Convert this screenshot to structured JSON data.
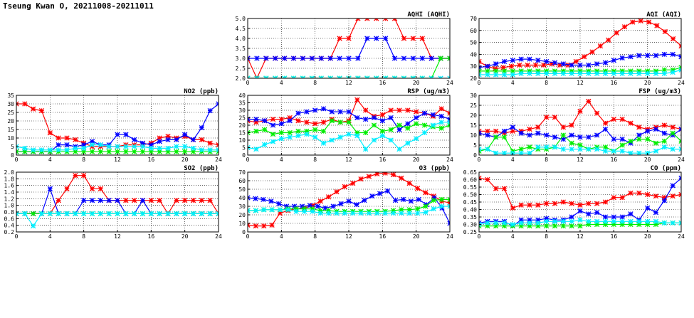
{
  "page": {
    "title": "Tseung Kwan O, 20211008-20211011"
  },
  "colors": {
    "red": "#ff0000",
    "blue": "#0000ff",
    "green": "#00ee00",
    "cyan": "#00eeff"
  },
  "chart_data": [
    {
      "id": "aqhi",
      "type": "line",
      "title": "AQHI (AQHI)",
      "xlim": [
        0,
        24
      ],
      "xticks": [
        0,
        4,
        8,
        12,
        16,
        20,
        24
      ],
      "ylim": [
        2.0,
        5.0
      ],
      "yticks": [
        "2.0",
        "2.5",
        "3.0",
        "3.5",
        "4.0",
        "4.5",
        "5.0"
      ],
      "grid": true,
      "series": [
        {
          "color": "red",
          "values": [
            3,
            2,
            3,
            3,
            3,
            3,
            3,
            3,
            3,
            3,
            4,
            4,
            5,
            5,
            5,
            5,
            5,
            4,
            4,
            4,
            3,
            3,
            3
          ]
        },
        {
          "color": "blue",
          "values": [
            3,
            3,
            3,
            3,
            3,
            3,
            3,
            3,
            3,
            3,
            3,
            3,
            3,
            4,
            4,
            4,
            3,
            3,
            3,
            3,
            3,
            3,
            3
          ]
        },
        {
          "color": "green",
          "values": [
            2,
            2,
            2,
            2,
            2,
            2,
            2,
            2,
            2,
            2,
            2,
            2,
            2,
            2,
            2,
            2,
            2,
            2,
            2,
            2,
            2,
            3,
            3
          ]
        },
        {
          "color": "cyan",
          "values": [
            2,
            2,
            2,
            2,
            2,
            2,
            2,
            2,
            2,
            2,
            2,
            2,
            2,
            2,
            2,
            2,
            2,
            2,
            2,
            2,
            2,
            2,
            2
          ]
        }
      ]
    },
    {
      "id": "aqi",
      "type": "line",
      "title": "AQI (AQI)",
      "xlim": [
        0,
        24
      ],
      "xticks": [
        0,
        4,
        8,
        12,
        16,
        20,
        24
      ],
      "ylim": [
        20,
        70
      ],
      "yticks": [
        "20",
        "30",
        "40",
        "50",
        "60",
        "70"
      ],
      "grid": true,
      "series": [
        {
          "color": "red",
          "values": [
            34,
            30,
            28,
            29,
            30,
            31,
            31,
            31,
            31,
            32,
            31,
            31,
            34,
            38,
            42,
            47,
            52,
            58,
            63,
            67,
            68,
            67,
            64,
            59,
            53,
            47
          ]
        },
        {
          "color": "blue",
          "values": [
            29,
            30,
            32,
            34,
            35,
            36,
            36,
            35,
            34,
            33,
            32,
            31,
            31,
            31,
            32,
            33,
            35,
            37,
            38,
            39,
            39,
            39,
            40,
            40,
            38
          ]
        },
        {
          "color": "green",
          "values": [
            26,
            26,
            26,
            26,
            26,
            26,
            26,
            26,
            26,
            26,
            26,
            26,
            26,
            26,
            26,
            26,
            26,
            26,
            26,
            26,
            26,
            26,
            27,
            27,
            29
          ]
        },
        {
          "color": "cyan",
          "values": [
            23,
            23,
            23,
            23,
            23,
            24,
            24,
            24,
            24,
            24,
            24,
            24,
            24,
            24,
            24,
            24,
            24,
            24,
            24,
            24,
            24,
            24,
            24,
            25,
            27
          ]
        }
      ]
    },
    {
      "id": "no2",
      "type": "line",
      "title": "NO2 (ppb)",
      "xlim": [
        0,
        24
      ],
      "xticks": [
        0,
        4,
        8,
        12,
        16,
        20,
        24
      ],
      "ylim": [
        0,
        35
      ],
      "yticks": [
        "0",
        "5",
        "10",
        "15",
        "20",
        "25",
        "30",
        "35"
      ],
      "grid": true,
      "series": [
        {
          "color": "red",
          "values": [
            30,
            30,
            27,
            26,
            13,
            10,
            10,
            9,
            7,
            5,
            5,
            5,
            5,
            6,
            6,
            6,
            7,
            10,
            11,
            10,
            11,
            9,
            9,
            7,
            6
          ]
        },
        {
          "color": "blue",
          "values": [
            2,
            2,
            2,
            2,
            2,
            6,
            6,
            5,
            6,
            8,
            6,
            6,
            12,
            12,
            9,
            7,
            6,
            8,
            9,
            9,
            12,
            9,
            16,
            26,
            30
          ]
        },
        {
          "color": "green",
          "values": [
            2,
            2,
            2,
            2,
            2,
            2,
            2,
            2,
            2,
            2,
            2,
            2,
            2,
            2,
            2,
            2,
            2,
            2,
            2,
            2,
            2,
            2,
            2,
            2,
            2
          ]
        },
        {
          "color": "cyan",
          "values": [
            5,
            4,
            3,
            3,
            3,
            3,
            3,
            4,
            4,
            6,
            6,
            5,
            5,
            5,
            5,
            5,
            4,
            4,
            4,
            5,
            5,
            4,
            3,
            3,
            3
          ]
        }
      ]
    },
    {
      "id": "rsp",
      "type": "line",
      "title": "RSP (ug/m3)",
      "xlim": [
        0,
        24
      ],
      "xticks": [
        0,
        4,
        8,
        12,
        16,
        20,
        24
      ],
      "ylim": [
        0,
        40
      ],
      "yticks": [
        "0",
        "5",
        "10",
        "15",
        "20",
        "25",
        "30",
        "35",
        "40"
      ],
      "grid": true,
      "series": [
        {
          "color": "red",
          "values": [
            23,
            22,
            23,
            24,
            24,
            25,
            23,
            22,
            21,
            22,
            24,
            22,
            23,
            37,
            30,
            26,
            27,
            30,
            30,
            30,
            29,
            28,
            26,
            31,
            28
          ]
        },
        {
          "color": "blue",
          "values": [
            24,
            24,
            23,
            20,
            21,
            23,
            28,
            29,
            30,
            31,
            29,
            29,
            29,
            25,
            24,
            25,
            23,
            25,
            17,
            21,
            25,
            28,
            27,
            26,
            24
          ]
        },
        {
          "color": "green",
          "values": [
            15,
            16,
            17,
            14,
            15,
            15,
            16,
            16,
            17,
            16,
            23,
            22,
            22,
            15,
            15,
            20,
            16,
            17,
            20,
            18,
            21,
            20,
            19,
            18,
            20
          ]
        },
        {
          "color": "cyan",
          "values": [
            5,
            4,
            7,
            9,
            11,
            12,
            13,
            14,
            12,
            8,
            10,
            12,
            14,
            13,
            4,
            10,
            13,
            10,
            4,
            8,
            11,
            15,
            20,
            22,
            22
          ]
        }
      ]
    },
    {
      "id": "fsp",
      "type": "line",
      "title": "FSP (ug/m3)",
      "xlim": [
        0,
        24
      ],
      "xticks": [
        0,
        4,
        8,
        12,
        16,
        20,
        24
      ],
      "ylim": [
        0,
        30
      ],
      "yticks": [
        "0",
        "5",
        "10",
        "15",
        "20",
        "25",
        "30"
      ],
      "grid": true,
      "series": [
        {
          "color": "red",
          "values": [
            12,
            12,
            12,
            11,
            12,
            12,
            13,
            14,
            19,
            19,
            14,
            15,
            22,
            27,
            21,
            16,
            18,
            18,
            16,
            14,
            13,
            14,
            15,
            14,
            13
          ]
        },
        {
          "color": "blue",
          "values": [
            11,
            10,
            9,
            12,
            14,
            11,
            10,
            11,
            10,
            9,
            8,
            10,
            9,
            9,
            10,
            13,
            8,
            8,
            6,
            10,
            12,
            13,
            11,
            10,
            13
          ]
        },
        {
          "color": "green",
          "values": [
            2,
            3,
            9,
            9,
            2,
            3,
            4,
            3,
            3,
            4,
            10,
            6,
            5,
            3,
            4,
            4,
            2,
            5,
            7,
            8,
            8,
            6,
            7,
            11,
            7
          ]
        },
        {
          "color": "cyan",
          "values": [
            3,
            3,
            1,
            1,
            1,
            1,
            1,
            4,
            4,
            4,
            3,
            3,
            3,
            3,
            3,
            2,
            2,
            2,
            1,
            1,
            1,
            2,
            4,
            3,
            3
          ]
        }
      ]
    },
    {
      "id": "so2",
      "type": "line",
      "title": "SO2 (ppb)",
      "xlim": [
        0,
        24
      ],
      "xticks": [
        0,
        4,
        8,
        12,
        16,
        20,
        24
      ],
      "ylim": [
        0.2,
        2.0
      ],
      "yticks": [
        "0.2",
        "0.4",
        "0.6",
        "0.8",
        "1.0",
        "1.2",
        "1.4",
        "1.6",
        "1.8",
        "2.0"
      ],
      "grid": true,
      "series": [
        {
          "color": "red",
          "values": [
            0.75,
            0.75,
            0.75,
            0.75,
            0.75,
            1.15,
            1.5,
            1.9,
            1.9,
            1.5,
            1.5,
            1.15,
            1.15,
            1.15,
            1.15,
            1.15,
            1.15,
            1.15,
            0.75,
            1.15,
            1.15,
            1.15,
            1.15,
            1.15,
            0.75
          ]
        },
        {
          "color": "blue",
          "values": [
            0.75,
            0.75,
            0.75,
            0.75,
            1.5,
            0.75,
            0.75,
            0.75,
            1.15,
            1.15,
            1.15,
            1.15,
            1.15,
            0.75,
            0.75,
            1.15,
            0.75,
            0.75,
            0.75,
            0.75,
            0.75,
            0.75,
            0.75,
            0.75,
            0.75
          ]
        },
        {
          "color": "green",
          "values": [
            0.75,
            0.75,
            0.75,
            0.75,
            0.75,
            0.75,
            0.75,
            0.75,
            0.75,
            0.75,
            0.75,
            0.75,
            0.75,
            0.75,
            0.75,
            0.75,
            0.75,
            0.75,
            0.75,
            0.75,
            0.75,
            0.75,
            0.75,
            0.75,
            0.75
          ]
        },
        {
          "color": "cyan",
          "values": [
            0.75,
            0.75,
            0.38,
            0.75,
            0.75,
            0.75,
            0.75,
            0.75,
            0.75,
            0.75,
            0.75,
            0.75,
            0.75,
            0.75,
            0.75,
            0.75,
            0.75,
            0.75,
            0.75,
            0.75,
            0.75,
            0.75,
            0.75,
            0.75,
            0.75
          ]
        }
      ]
    },
    {
      "id": "o3",
      "type": "line",
      "title": "O3 (ppb)",
      "xlim": [
        0,
        24
      ],
      "xticks": [
        0,
        4,
        8,
        12,
        16,
        20,
        24
      ],
      "ylim": [
        0,
        70
      ],
      "yticks": [
        "0",
        "10",
        "20",
        "30",
        "40",
        "50",
        "60",
        "70"
      ],
      "grid": true,
      "series": [
        {
          "color": "red",
          "values": [
            8,
            7,
            7,
            8,
            22,
            25,
            27,
            28,
            31,
            36,
            41,
            47,
            53,
            57,
            62,
            65,
            68,
            69,
            67,
            63,
            57,
            51,
            46,
            42,
            36,
            34
          ]
        },
        {
          "color": "blue",
          "values": [
            40,
            39,
            38,
            36,
            33,
            30,
            30,
            30,
            31,
            30,
            28,
            30,
            33,
            36,
            32,
            37,
            42,
            45,
            48,
            37,
            38,
            36,
            38,
            32,
            40,
            28,
            10
          ]
        },
        {
          "color": "green",
          "values": [
            25,
            25,
            26,
            26,
            26,
            27,
            27,
            27,
            27,
            25,
            25,
            24,
            24,
            24,
            24,
            24,
            24,
            24,
            25,
            26,
            26,
            27,
            30,
            37,
            38,
            38
          ]
        },
        {
          "color": "cyan",
          "values": [
            25,
            25,
            26,
            26,
            26,
            26,
            24,
            24,
            24,
            22,
            22,
            22,
            22,
            22,
            22,
            22,
            22,
            22,
            22,
            22,
            22,
            22,
            23,
            27,
            30,
            30
          ]
        }
      ]
    },
    {
      "id": "co",
      "type": "line",
      "title": "CO (ppm)",
      "xlim": [
        0,
        24
      ],
      "xticks": [
        0,
        4,
        8,
        12,
        16,
        20,
        24
      ],
      "ylim": [
        0.25,
        0.65
      ],
      "yticks": [
        "0.25",
        "0.30",
        "0.35",
        "0.40",
        "0.45",
        "0.50",
        "0.55",
        "0.60",
        "0.65"
      ],
      "grid": true,
      "series": [
        {
          "color": "red",
          "values": [
            0.61,
            0.6,
            0.54,
            0.54,
            0.41,
            0.43,
            0.43,
            0.43,
            0.44,
            0.44,
            0.45,
            0.44,
            0.43,
            0.44,
            0.44,
            0.45,
            0.48,
            0.48,
            0.51,
            0.51,
            0.5,
            0.49,
            0.48,
            0.49,
            0.5
          ]
        },
        {
          "color": "blue",
          "values": [
            0.31,
            0.32,
            0.32,
            0.32,
            0.29,
            0.33,
            0.33,
            0.33,
            0.34,
            0.33,
            0.33,
            0.35,
            0.39,
            0.37,
            0.38,
            0.35,
            0.35,
            0.35,
            0.37,
            0.33,
            0.41,
            0.38,
            0.46,
            0.56,
            0.61
          ]
        },
        {
          "color": "green",
          "values": [
            0.29,
            0.29,
            0.29,
            0.29,
            0.29,
            0.29,
            0.29,
            0.29,
            0.29,
            0.29,
            0.29,
            0.29,
            0.29,
            0.3,
            0.3,
            0.3,
            0.3,
            0.3,
            0.3,
            0.3,
            0.3,
            0.3,
            0.31,
            0.31,
            0.31
          ]
        },
        {
          "color": "cyan",
          "values": [
            0.3,
            0.31,
            0.31,
            0.31,
            0.3,
            0.31,
            0.31,
            0.31,
            0.32,
            0.32,
            0.32,
            0.32,
            0.33,
            0.32,
            0.32,
            0.32,
            0.32,
            0.32,
            0.32,
            0.32,
            0.32,
            0.32,
            0.31,
            0.31,
            0.31
          ]
        }
      ]
    }
  ]
}
